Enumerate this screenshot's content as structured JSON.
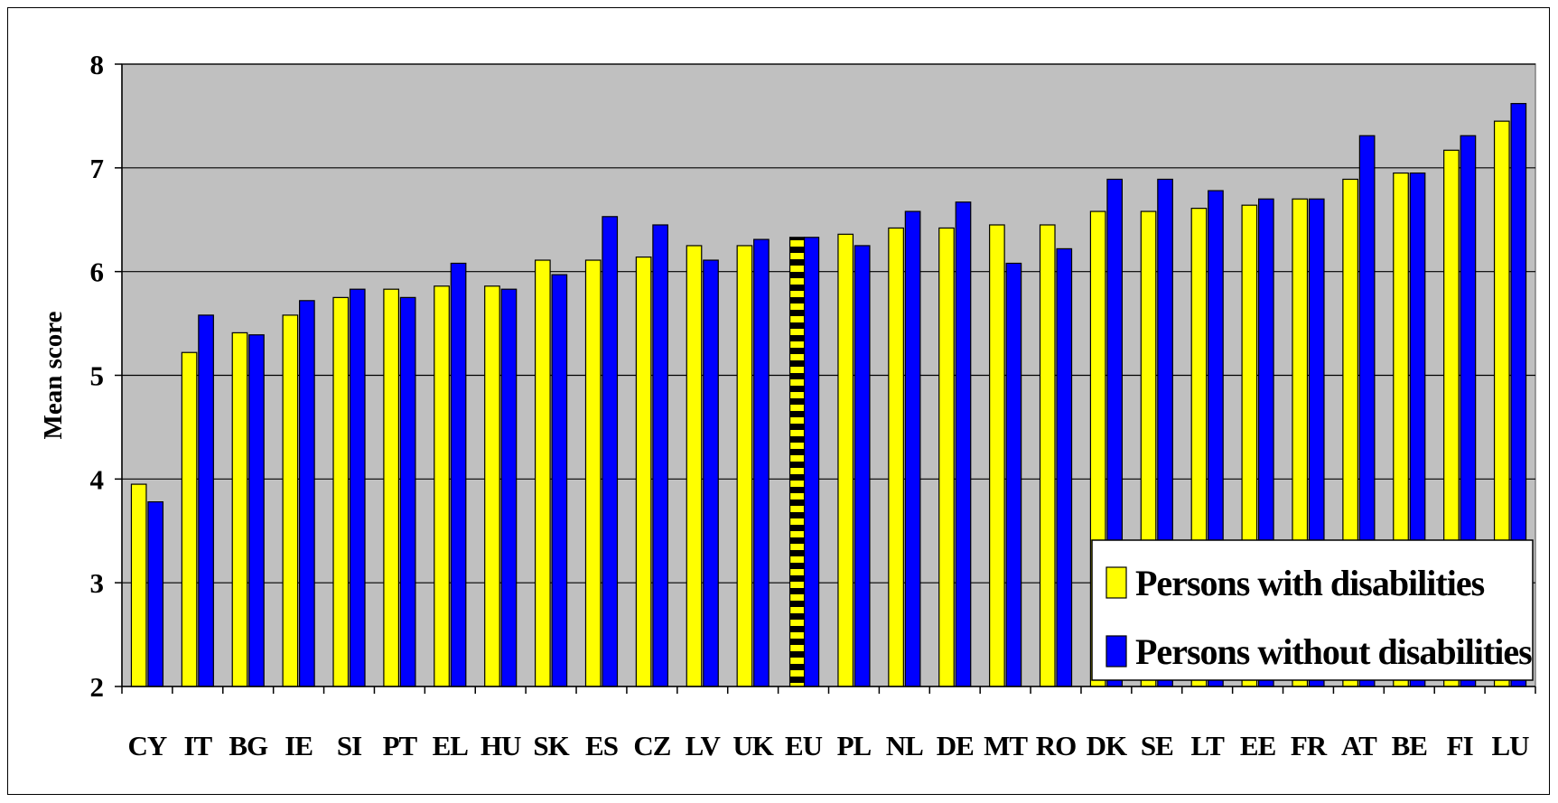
{
  "chart_data": {
    "type": "bar",
    "title": "",
    "xlabel": "",
    "ylabel": "Mean score",
    "ylim": [
      2,
      8
    ],
    "yticks": [
      2,
      3,
      4,
      5,
      6,
      7,
      8
    ],
    "grid": true,
    "legend_position": "bottom-right",
    "categories": [
      "CY",
      "IT",
      "BG",
      "IE",
      "SI",
      "PT",
      "EL",
      "HU",
      "SK",
      "ES",
      "CZ",
      "LV",
      "UK",
      "EU",
      "PL",
      "NL",
      "DE",
      "MT",
      "RO",
      "DK",
      "SE",
      "LT",
      "EE",
      "FR",
      "AT",
      "BE",
      "FI",
      "LU"
    ],
    "highlight_category": "EU",
    "series": [
      {
        "name": "Persons with disabilities",
        "color": "#ffff00",
        "values": [
          3.95,
          5.22,
          5.41,
          5.58,
          5.75,
          5.83,
          5.86,
          5.86,
          6.11,
          6.11,
          6.14,
          6.25,
          6.25,
          6.33,
          6.36,
          6.42,
          6.42,
          6.45,
          6.45,
          6.58,
          6.58,
          6.61,
          6.64,
          6.7,
          6.89,
          6.95,
          7.17,
          7.45
        ]
      },
      {
        "name": "Persons without disabilities",
        "color": "#0000ff",
        "values": [
          3.78,
          5.58,
          5.39,
          5.72,
          5.83,
          5.75,
          6.08,
          5.83,
          5.97,
          6.53,
          6.45,
          6.11,
          6.31,
          6.33,
          6.25,
          6.58,
          6.67,
          6.08,
          6.22,
          6.89,
          6.89,
          6.78,
          6.7,
          6.7,
          7.31,
          6.95,
          7.31,
          7.62
        ]
      }
    ],
    "colors": {
      "plot_background": "#c0c0c0",
      "gridline": "#000000"
    }
  }
}
